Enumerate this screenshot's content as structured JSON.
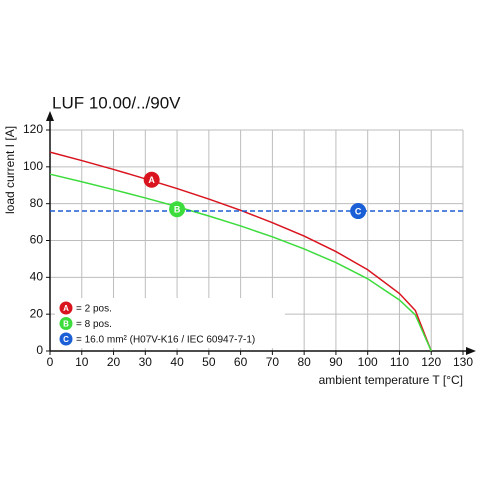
{
  "chart_data": {
    "type": "line",
    "title": "LUF 10.00/../90V",
    "y_label": "load current I [A]",
    "x_label": "ambient temperature T [°C]",
    "xlim": [
      0,
      130
    ],
    "ylim": [
      0,
      120
    ],
    "xticks": [
      0,
      10,
      20,
      30,
      40,
      50,
      60,
      70,
      80,
      90,
      100,
      110,
      120,
      130
    ],
    "yticks": [
      0,
      20,
      40,
      60,
      80,
      100,
      120
    ],
    "grid": true,
    "series": [
      {
        "name": "= 2 pos.",
        "marker_label": "A",
        "color": "#d9141e",
        "dashed": false,
        "x": [
          0,
          10,
          20,
          30,
          40,
          50,
          60,
          70,
          80,
          90,
          100,
          110,
          115,
          120
        ],
        "values": [
          108,
          103.4,
          98.6,
          93.5,
          88.2,
          82.5,
          76.4,
          69.7,
          62.4,
          54,
          44.1,
          31.2,
          22,
          0
        ],
        "marker_x": 32,
        "marker_y": 93
      },
      {
        "name": "= 8 pos.",
        "marker_label": "B",
        "color": "#3ddc3d",
        "dashed": false,
        "x": [
          0,
          10,
          20,
          30,
          40,
          50,
          60,
          70,
          80,
          90,
          100,
          110,
          115,
          120
        ],
        "values": [
          96,
          91.9,
          87.6,
          83.1,
          78.4,
          73.3,
          67.9,
          62,
          55.4,
          48,
          39.2,
          27.7,
          19.6,
          0
        ],
        "marker_x": 40,
        "marker_y": 77
      },
      {
        "name": "= 16.0 mm² (H07V-K16 / IEC 60947-7-1)",
        "marker_label": "C",
        "color": "#1a5fd6",
        "dashed": true,
        "x": [
          0,
          130
        ],
        "values": [
          76,
          76
        ],
        "marker_x": 97,
        "marker_y": 76
      }
    ]
  }
}
